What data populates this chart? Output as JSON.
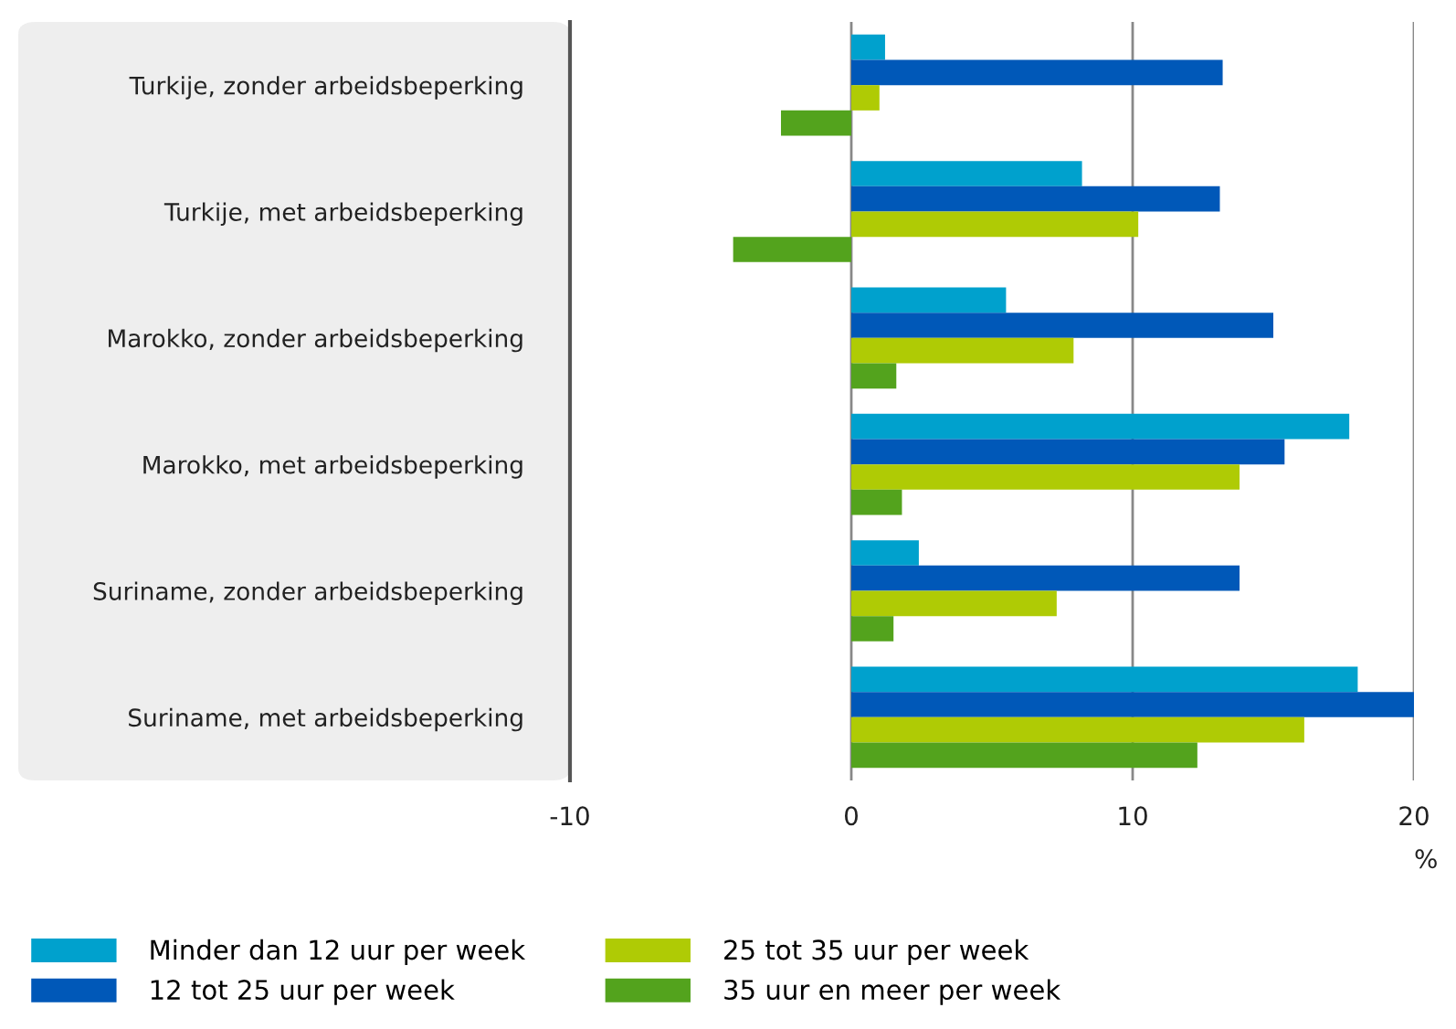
{
  "chart_data": {
    "type": "bar",
    "orientation": "horizontal",
    "xlabel": "%",
    "categories": [
      "Turkije, zonder arbeidsbeperking",
      "Turkije, met arbeidsbeperking",
      "Marokko, zonder arbeidsbeperking",
      "Marokko, met arbeidsbeperking",
      "Suriname, zonder arbeidsbeperking",
      "Suriname, met arbeidsbeperking"
    ],
    "series": [
      {
        "name": "Minder dan 12 uur per week",
        "color": "#00a1cd",
        "values": [
          1.2,
          8.2,
          5.5,
          17.7,
          2.4,
          18.0
        ]
      },
      {
        "name": "12 tot 25 uur per week",
        "color": "#0058b8",
        "values": [
          13.2,
          13.1,
          15.0,
          15.4,
          13.8,
          20.0
        ]
      },
      {
        "name": "25 tot 35 uur per week",
        "color": "#afcb05",
        "values": [
          1.0,
          10.2,
          7.9,
          13.8,
          7.3,
          16.1
        ]
      },
      {
        "name": "35 uur en meer per week",
        "color": "#53a31d",
        "values": [
          -2.5,
          -4.2,
          1.6,
          1.8,
          1.5,
          12.3
        ]
      }
    ],
    "xlim": [
      -10,
      20
    ],
    "xticks": [
      -10,
      0,
      10,
      20
    ],
    "grid": "x",
    "legend": "bottom"
  }
}
